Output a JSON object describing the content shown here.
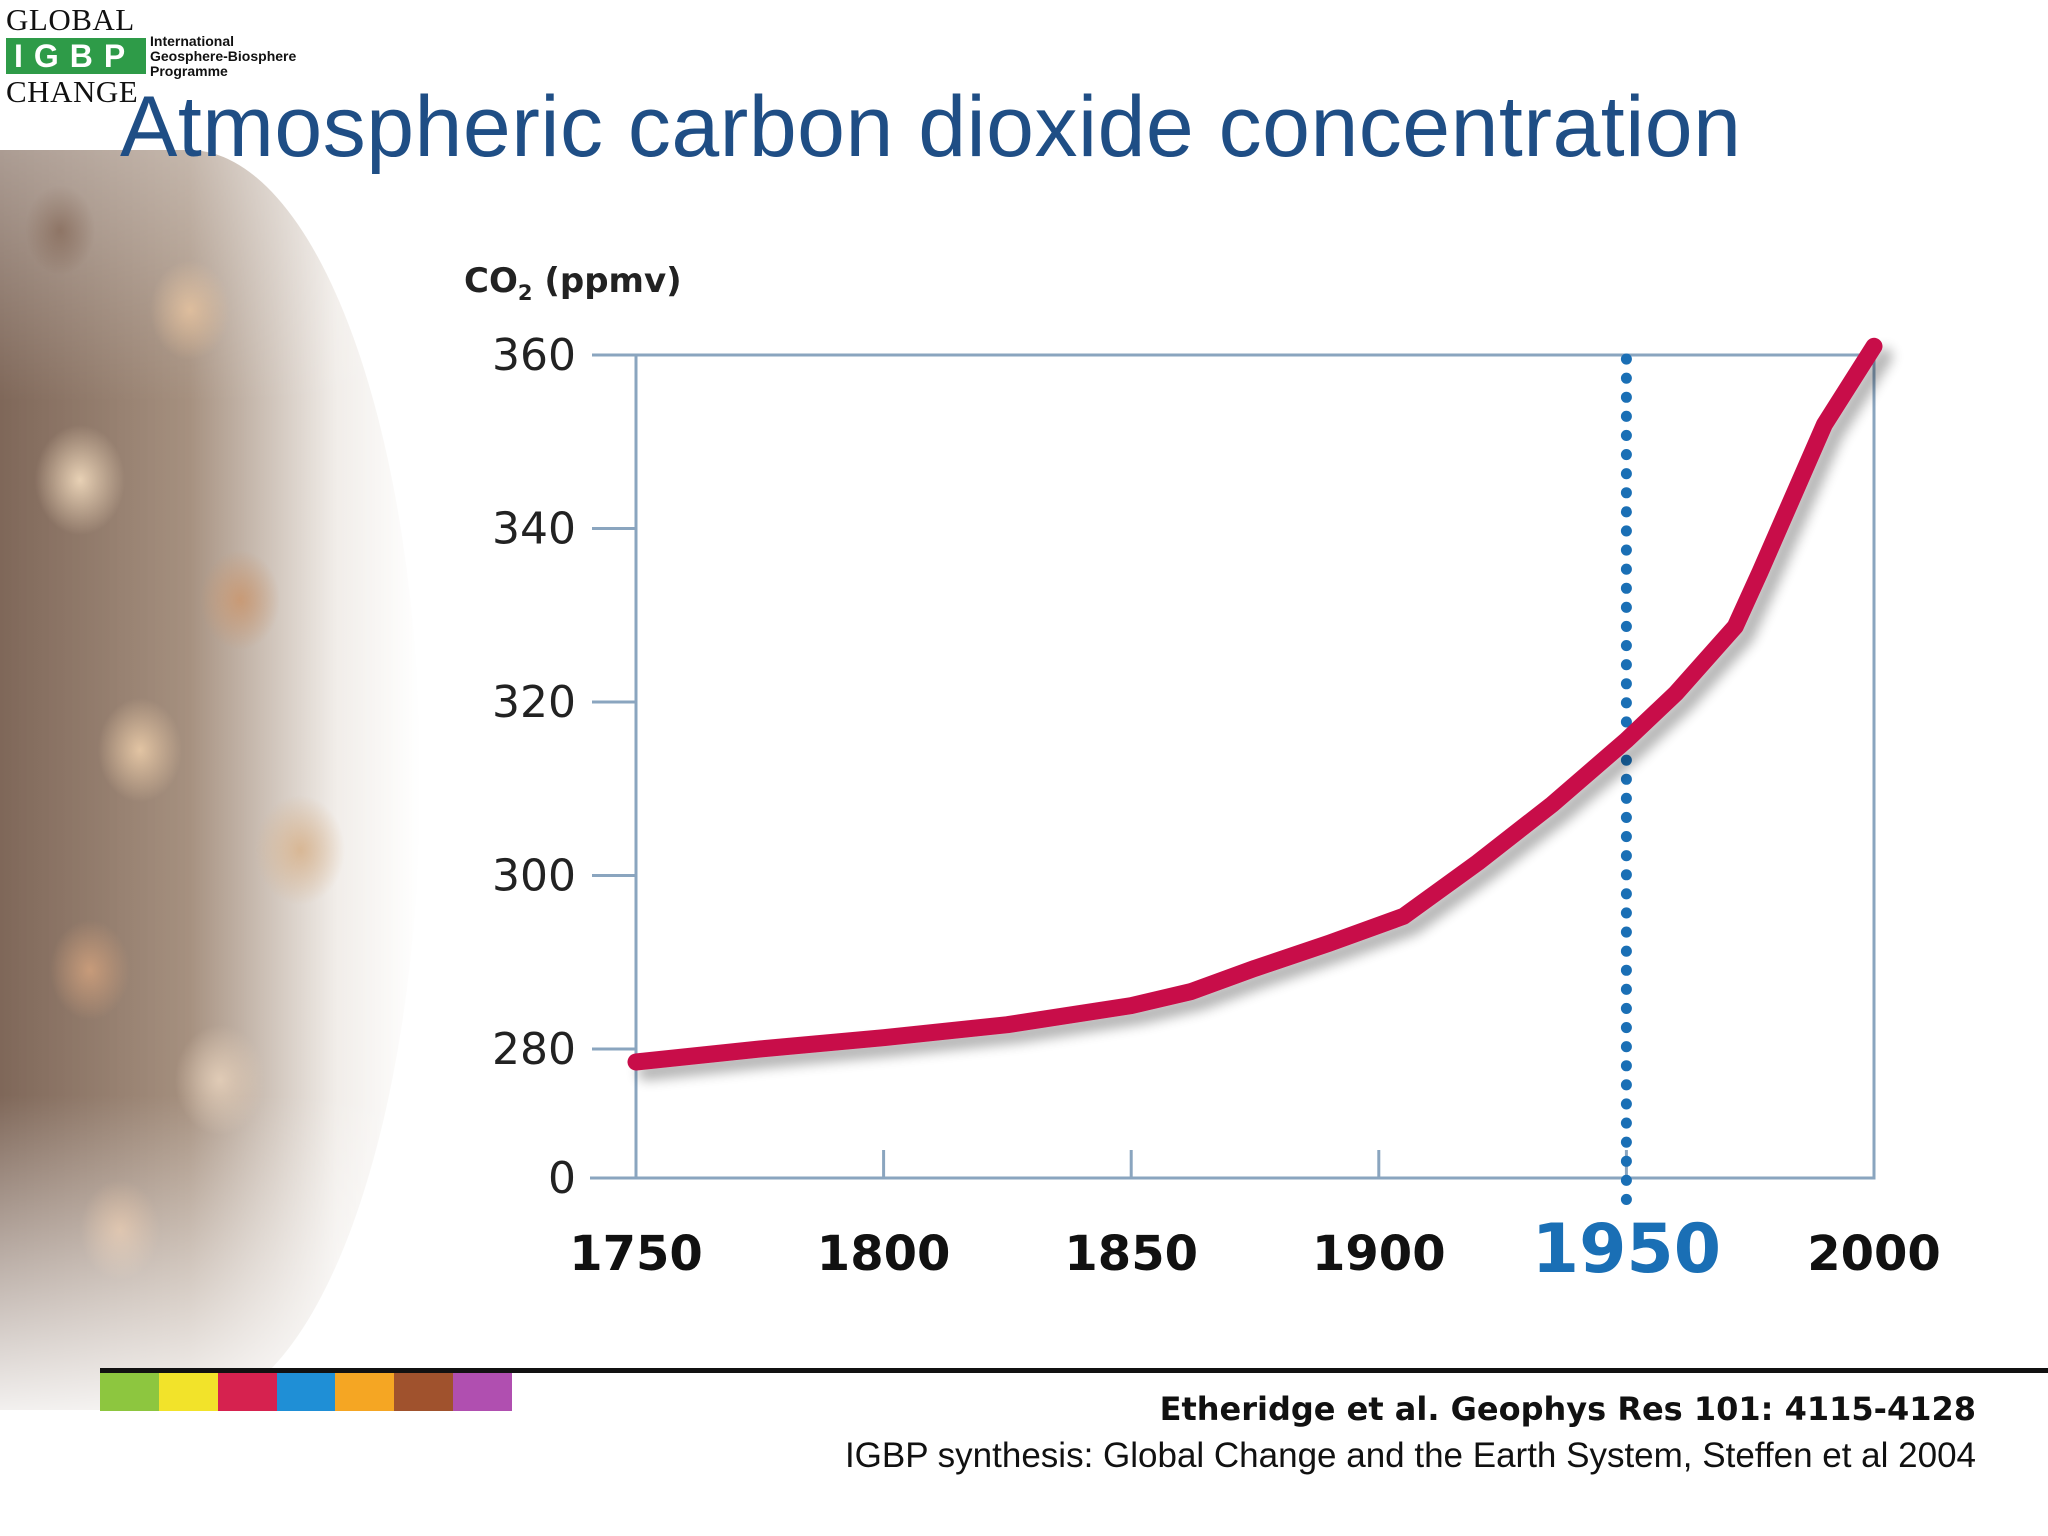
{
  "logo": {
    "line1": "GLOBAL",
    "mark": "IGBP",
    "line3": "CHANGE",
    "subtitle": [
      "International",
      "Geosphere-Biosphere",
      "Programme"
    ],
    "brand_color": "#2e9b48"
  },
  "slide": {
    "title": "Atmospheric carbon dioxide concentration",
    "title_color": "#1f4e85"
  },
  "chart_data": {
    "type": "line",
    "title": "",
    "ylabel": "CO₂ (ppmv)",
    "ylabel_parts": {
      "prefix": "CO",
      "subscript": "2",
      "suffix": " (ppmv)"
    },
    "xlabel": "",
    "xlim": [
      1750,
      2000
    ],
    "ylim": [
      275,
      360
    ],
    "y_axis_break": true,
    "x_ticks": [
      "1750",
      "1800",
      "1850",
      "1900",
      "1950",
      "2000"
    ],
    "y_ticks": [
      "0",
      "280",
      "300",
      "320",
      "340",
      "360"
    ],
    "highlight_x": "1950",
    "highlight_color": "#1a6fb5",
    "series": [
      {
        "color": "#c8104a",
        "x": [
          1750,
          1775,
          1800,
          1825,
          1850,
          1862,
          1875,
          1890,
          1905,
          1920,
          1935,
          1950,
          1960,
          1972,
          1977,
          1990,
          2000
        ],
        "y": [
          278.5,
          280.0,
          281.3,
          282.8,
          285.0,
          286.6,
          289.3,
          292.2,
          295.3,
          301.5,
          308.2,
          315.6,
          321.0,
          328.7,
          335.0,
          352.0,
          361.0
        ]
      }
    ],
    "grid": false,
    "legend": "none"
  },
  "footer": {
    "citation_primary": "Etheridge et al. Geophys Res 101: 4115-4128",
    "citation_secondary": "IGBP synthesis: Global Change and the Earth System, Steffen et al 2004",
    "strip_colors": [
      "#8dc63f",
      "#f2e32a",
      "#d6224f",
      "#1f8fd6",
      "#f5a623",
      "#a0522d",
      "#b04fb0"
    ]
  }
}
